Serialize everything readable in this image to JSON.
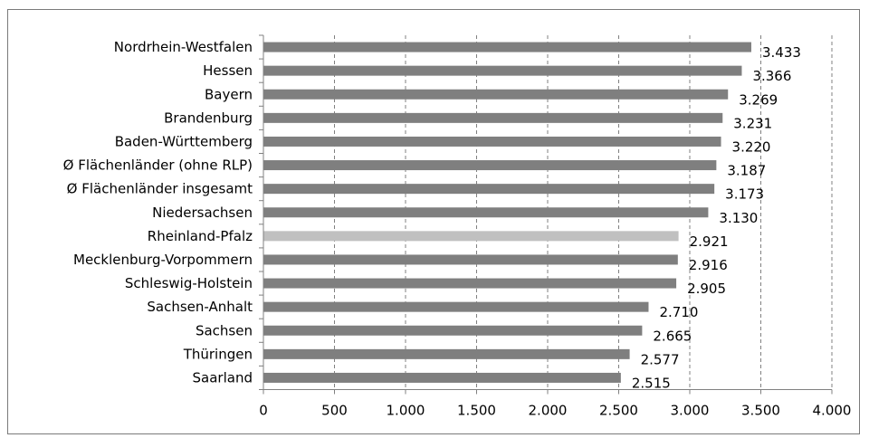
{
  "chart_data": {
    "type": "bar",
    "orientation": "horizontal",
    "categories": [
      "Nordrhein-Westfalen",
      "Hessen",
      "Bayern",
      "Brandenburg",
      "Baden-Württemberg",
      "Ø Flächenländer (ohne RLP)",
      "Ø Flächenländer insgesamt",
      "Niedersachsen",
      "Rheinland-Pfalz",
      "Mecklenburg-Vorpommern",
      "Schleswig-Holstein",
      "Sachsen-Anhalt",
      "Sachsen",
      "Thüringen",
      "Saarland"
    ],
    "values": [
      3433,
      3366,
      3269,
      3231,
      3220,
      3187,
      3173,
      3130,
      2921,
      2916,
      2905,
      2710,
      2665,
      2577,
      2515
    ],
    "value_labels": [
      "3.433",
      "3.366",
      "3.269",
      "3.231",
      "3.220",
      "3.187",
      "3.173",
      "3.130",
      "2.921",
      "2.916",
      "2.905",
      "2.710",
      "2.665",
      "2.577",
      "2.515"
    ],
    "highlight_category": "Rheinland-Pfalz",
    "xlim": [
      0,
      4000
    ],
    "x_ticks": [
      0,
      500,
      1000,
      1500,
      2000,
      2500,
      3000,
      3500,
      4000
    ],
    "x_tick_labels": [
      "0",
      "500",
      "1.000",
      "1.500",
      "2.000",
      "2.500",
      "3.000",
      "3.500",
      "4.000"
    ],
    "grid": "vertical-dashed",
    "title": "",
    "xlabel": "",
    "ylabel": "",
    "colors": {
      "bar": "#7f7f7f",
      "highlight": "#c0c0c0",
      "grid": "#808080",
      "axis": "#808080"
    }
  }
}
